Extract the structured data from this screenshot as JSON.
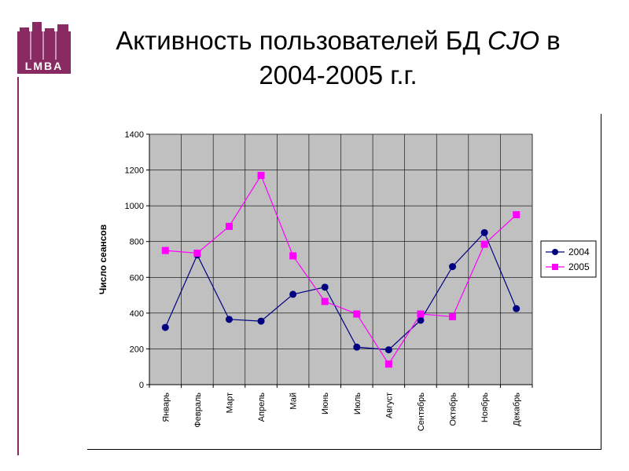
{
  "slide": {
    "title_line1_pre": "Активность пользователей БД ",
    "title_line1_em": "CJO",
    "title_line1_post": " в",
    "title_line2": "2004-2005 г.г.",
    "logo_text": "LMBA",
    "colors": {
      "logo": "#8a2a63",
      "plot_bg": "#c0c0c0",
      "series_2004": "#000080",
      "series_2005": "#ff00ff"
    }
  },
  "chart_data": {
    "type": "line",
    "categories": [
      "Январь",
      "Февраль",
      "Март",
      "Апрель",
      "Май",
      "Июнь",
      "Июль",
      "Август",
      "Сентябрь",
      "Октябрь",
      "Ноябрь",
      "Декабрь"
    ],
    "series": [
      {
        "name": "2004",
        "marker": "circle",
        "color": "#000080",
        "values": [
          320,
          725,
          365,
          355,
          505,
          545,
          210,
          195,
          360,
          660,
          850,
          425
        ]
      },
      {
        "name": "2005",
        "marker": "square",
        "color": "#ff00ff",
        "values": [
          750,
          735,
          885,
          1170,
          720,
          465,
          395,
          115,
          395,
          380,
          785,
          950
        ]
      }
    ],
    "ylabel": "Число сеансов",
    "ylim": [
      0,
      1400
    ],
    "yticks": [
      0,
      200,
      400,
      600,
      800,
      1000,
      1200,
      1400
    ],
    "grid": true,
    "legend": "right"
  }
}
